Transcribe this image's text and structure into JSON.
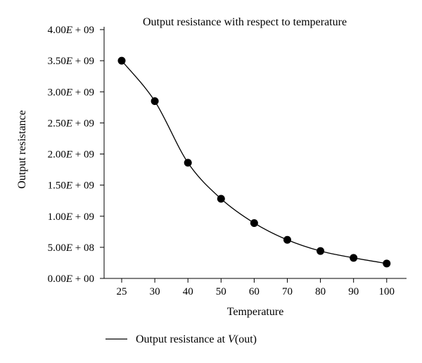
{
  "chart_data": {
    "type": "line",
    "title": "Output resistance with respect to temperature",
    "xlabel": "Temperature",
    "ylabel": "Output resistance",
    "categories": [
      "25",
      "30",
      "40",
      "50",
      "60",
      "70",
      "80",
      "90",
      "100"
    ],
    "series": [
      {
        "name": "Output resistance at V(out)",
        "values": [
          3500000000.0,
          2850000000.0,
          1860000000.0,
          1280000000.0,
          890000000.0,
          620000000.0,
          440000000.0,
          330000000.0,
          240000000.0
        ],
        "color": "#000000",
        "marker": "filled-circle"
      }
    ],
    "ylim": [
      0,
      4000000000
    ],
    "yticks": [
      {
        "value": 0,
        "mant": "0.00",
        "exp": "00"
      },
      {
        "value": 500000000,
        "mant": "5.00",
        "exp": "08"
      },
      {
        "value": 1000000000,
        "mant": "1.00",
        "exp": "09"
      },
      {
        "value": 1500000000,
        "mant": "1.50",
        "exp": "09"
      },
      {
        "value": 2000000000,
        "mant": "2.00",
        "exp": "09"
      },
      {
        "value": 2500000000,
        "mant": "2.50",
        "exp": "09"
      },
      {
        "value": 3000000000,
        "mant": "3.00",
        "exp": "09"
      },
      {
        "value": 3500000000,
        "mant": "3.50",
        "exp": "09"
      },
      {
        "value": 4000000000,
        "mant": "4.00",
        "exp": "09"
      }
    ],
    "grid": false,
    "legend_position": "bottom-left"
  }
}
